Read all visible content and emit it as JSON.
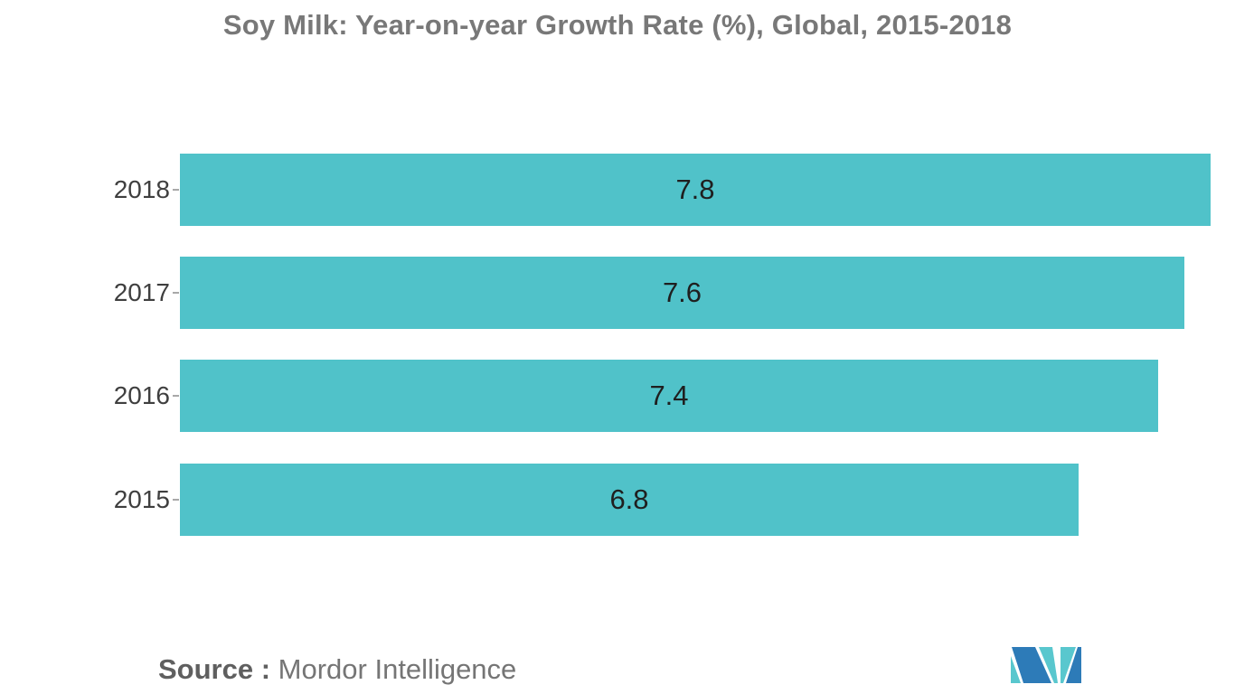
{
  "title": "Soy Milk: Year-on-year Growth Rate (%), Global, 2015-2018",
  "source": {
    "label": "Source : ",
    "name": "Mordor Intelligence"
  },
  "colors": {
    "bar": "#50C2C9",
    "title_text": "#787878",
    "category_text": "#3f3f3f",
    "value_text": "#1f1f1f",
    "logo_teal": "#59C7CE",
    "logo_blue": "#2D7BB8"
  },
  "chart_data": {
    "type": "bar",
    "orientation": "horizontal",
    "title": "Soy Milk: Year-on-year Growth Rate (%), Global, 2015-2018",
    "categories": [
      "2018",
      "2017",
      "2016",
      "2015"
    ],
    "values": [
      7.8,
      7.6,
      7.4,
      6.8
    ],
    "xlabel": "",
    "ylabel": "",
    "xlim": [
      0,
      7.8
    ],
    "grid": false,
    "legend": false,
    "value_labels": "inside-center",
    "bar_color": "#50C2C9"
  }
}
